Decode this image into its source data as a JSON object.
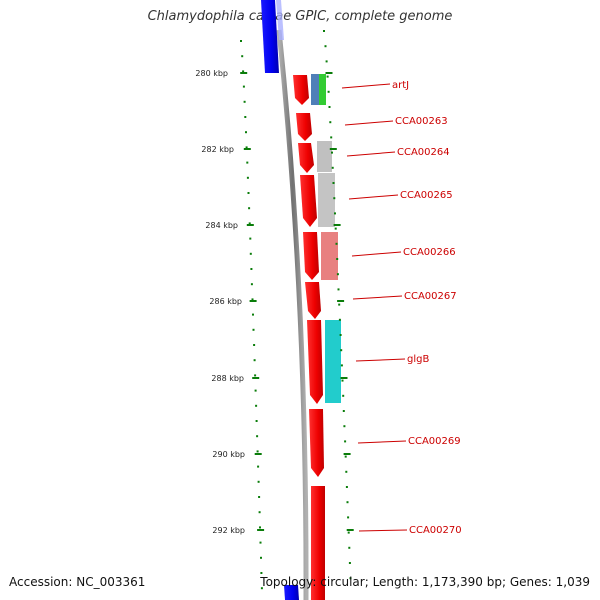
{
  "title": "Chlamydophila caviae GPIC, complete genome",
  "footer": {
    "accession_label": "Accession:",
    "accession": "NC_003361",
    "topology_label": "Topology:",
    "topology": "circular",
    "length_label": "Length:",
    "length": "1,173,390 bp",
    "genes_label": "Genes:",
    "genes": "1,039"
  },
  "axis": {
    "unit": "kbp",
    "ticks": [
      280,
      282,
      284,
      286,
      288,
      290,
      292
    ]
  },
  "colors": {
    "gene_red": "#ff0000",
    "gene_blue": "#0000ff",
    "backbone": "#808080",
    "scale_green": "#0a7d0a",
    "label_red": "#cc0000",
    "blue_steel": "#4f7fb8",
    "green": "#33cc33",
    "grey": "#c0c0c0",
    "pink": "#e88080",
    "cyan": "#22cccc"
  },
  "genes": [
    "artJ",
    "CCA00263",
    "CCA00264",
    "CCA00265",
    "CCA00266",
    "CCA00267",
    "glgB",
    "CCA00269",
    "CCA00270"
  ]
}
